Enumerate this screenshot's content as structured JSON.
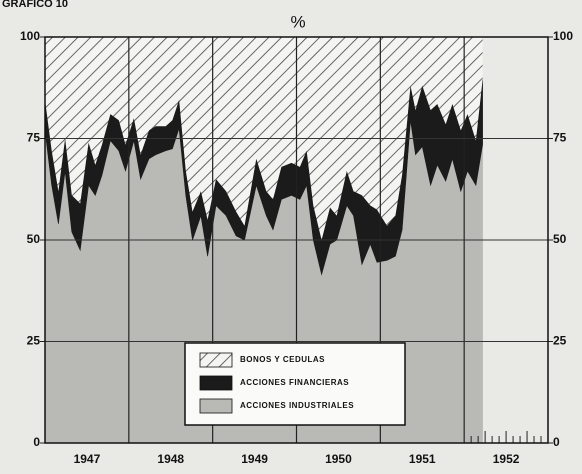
{
  "chart_data": {
    "type": "stacked-area",
    "caption": "GRÁFICO 10",
    "title": "%",
    "categories": [
      "1947",
      "1948",
      "1949",
      "1950",
      "1951",
      "1952"
    ],
    "x": [
      1947.0,
      1947.08,
      1947.16,
      1947.24,
      1947.32,
      1947.42,
      1947.52,
      1947.6,
      1947.68,
      1947.78,
      1947.88,
      1947.96,
      1948.06,
      1948.14,
      1948.24,
      1948.32,
      1948.44,
      1948.52,
      1948.6,
      1948.68,
      1948.76,
      1948.86,
      1948.94,
      1949.04,
      1949.16,
      1949.28,
      1949.38,
      1949.52,
      1949.64,
      1949.72,
      1949.82,
      1949.94,
      1950.04,
      1950.12,
      1950.2,
      1950.3,
      1950.4,
      1950.48,
      1950.6,
      1950.68,
      1950.78,
      1950.88,
      1950.96,
      1951.08,
      1951.18,
      1951.26,
      1951.36,
      1951.42,
      1951.5,
      1951.6,
      1951.68,
      1951.78,
      1951.86,
      1951.96,
      1952.04,
      1952.14,
      1952.22
    ],
    "series": [
      {
        "name": "BONOS Y CEDULAS",
        "color": "#ffffff",
        "hatch": true,
        "values": [
          15.5,
          28,
          38,
          25,
          39,
          41,
          26,
          31.5,
          26.5,
          19,
          20.5,
          26.5,
          20,
          29,
          23,
          22,
          22,
          20.5,
          15.5,
          33,
          43,
          38,
          45,
          35,
          38,
          43,
          46.5,
          30,
          38,
          40,
          32,
          31,
          32,
          28,
          41.5,
          50,
          42,
          44,
          33,
          38,
          39,
          41.5,
          42.5,
          46.5,
          44,
          34,
          12,
          18,
          12,
          18,
          16.5,
          21.5,
          16.5,
          23,
          19,
          25.5,
          10.5
        ]
      },
      {
        "name": "ACCIONES FINANCIERAS",
        "color": "#1b1b1b",
        "values": [
          7.5,
          8.5,
          8,
          8,
          9,
          11.5,
          10.5,
          7.5,
          7.5,
          6.5,
          7.5,
          6.5,
          5.5,
          6,
          7,
          7,
          6,
          7,
          7,
          6,
          7,
          6,
          9,
          6.5,
          6,
          6,
          3.5,
          6.5,
          6,
          7.5,
          8,
          8,
          8,
          8.5,
          8.5,
          8.5,
          9,
          6,
          8.5,
          6,
          17,
          9.5,
          13,
          8.5,
          10,
          13.5,
          8.5,
          11,
          15,
          18.5,
          15,
          14,
          13.5,
          15,
          14,
          11,
          16
        ]
      },
      {
        "name": "ACCIONES INDUSTRIALES",
        "color": "#b9b9b6",
        "values": [
          77,
          63.5,
          54,
          67,
          52,
          47.5,
          63.5,
          61,
          66,
          74.5,
          72,
          67,
          74.5,
          65,
          70,
          71,
          72,
          72.5,
          77.5,
          61,
          50,
          56,
          46,
          58.5,
          56,
          51,
          50,
          63.5,
          56,
          52.5,
          60,
          61,
          60,
          63.5,
          50,
          41.5,
          49,
          50,
          58.5,
          56,
          44,
          49,
          44.5,
          45,
          46,
          52.5,
          79.5,
          71,
          73,
          63.5,
          68.5,
          64.5,
          70,
          62,
          67,
          63.5,
          73.5
        ]
      }
    ],
    "xlim": [
      1947,
      1953
    ],
    "ylim": [
      0,
      100
    ],
    "yticks": [
      0,
      25,
      50,
      75,
      100
    ],
    "grid": true
  }
}
